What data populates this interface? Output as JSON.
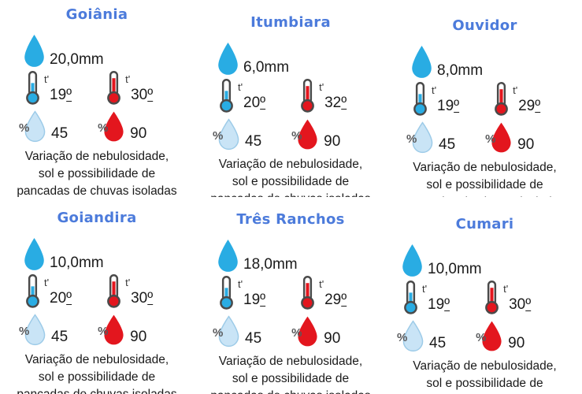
{
  "shared": {
    "t_label": "t'",
    "percent_symbol": "%",
    "ordinal_symbol": "º",
    "description_lines": [
      "Variação de nebulosidade,",
      "sol e possibilidade de",
      "pancadas de chuvas isoladas"
    ]
  },
  "colors": {
    "city-title": "#4C7BDB",
    "rain-drop": "#29ACE3",
    "min-humidity-fill": "#C9E4F6",
    "min-humidity-stroke": "#9DCBE8",
    "max-red": "#E3161E",
    "icon-outline": "#4A4A4A",
    "percent-gray": "#58595B",
    "text": "#1A1A1A"
  },
  "cards": [
    {
      "city": "Goiânia",
      "rain": "20,0mm",
      "t_min": "19",
      "t_max": "30",
      "hum_min": "45",
      "hum_max": "90"
    },
    {
      "city": "Itumbiara",
      "rain": "6,0mm",
      "t_min": "20",
      "t_max": "32",
      "hum_min": "45",
      "hum_max": "90"
    },
    {
      "city": "Ouvidor",
      "rain": "8,0mm",
      "t_min": "19",
      "t_max": "29",
      "hum_min": "45",
      "hum_max": "90"
    },
    {
      "city": "Goiandira",
      "rain": "10,0mm",
      "t_min": "20",
      "t_max": "30",
      "hum_min": "45",
      "hum_max": "90"
    },
    {
      "city": "Três Ranchos",
      "rain": "18,0mm",
      "t_min": "19",
      "t_max": "29",
      "hum_min": "45",
      "hum_max": "90"
    },
    {
      "city": "Cumari",
      "rain": "10,0mm",
      "t_min": "19",
      "t_max": "30",
      "hum_min": "45",
      "hum_max": "90"
    }
  ]
}
